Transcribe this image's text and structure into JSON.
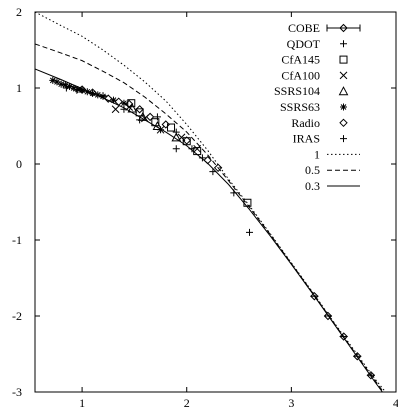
{
  "chart_data": {
    "type": "scatter",
    "title": "",
    "xlabel": "",
    "ylabel": "",
    "xlim": [
      0.55,
      4.0
    ],
    "ylim": [
      -3,
      2
    ],
    "xticks": [
      1,
      2,
      3,
      4
    ],
    "yticks": [
      -3,
      -2,
      -1,
      0,
      1,
      2
    ],
    "xtick_labels": [
      "1",
      "2",
      "3",
      "4"
    ],
    "ytick_labels": [
      "-3",
      "-2",
      "-1",
      "0",
      "1",
      "2"
    ],
    "grid": false,
    "legend_position": "top-right",
    "series": [
      {
        "name": "COBE",
        "marker": "diamond-errorbar",
        "points": [
          [
            3.22,
            -1.74
          ],
          [
            3.35,
            -2.0
          ],
          [
            3.5,
            -2.27
          ],
          [
            3.63,
            -2.53
          ],
          [
            3.76,
            -2.78
          ]
        ]
      },
      {
        "name": "QDOT",
        "marker": "plus",
        "points": [
          [
            1.72,
            0.62
          ],
          [
            1.9,
            0.42
          ],
          [
            2.05,
            0.2
          ]
        ]
      },
      {
        "name": "CfA145",
        "marker": "square",
        "points": [
          [
            1.47,
            0.8
          ],
          [
            1.55,
            0.68
          ],
          [
            1.7,
            0.55
          ],
          [
            1.85,
            0.48
          ],
          [
            2.0,
            0.3
          ],
          [
            2.1,
            0.17
          ],
          [
            2.58,
            -0.51
          ]
        ]
      },
      {
        "name": "CfA100",
        "marker": "cross",
        "points": [
          [
            1.32,
            0.72
          ],
          [
            1.45,
            0.75
          ],
          [
            1.6,
            0.6
          ],
          [
            1.75,
            0.45
          ],
          [
            1.95,
            0.35
          ],
          [
            2.1,
            0.2
          ]
        ]
      },
      {
        "name": "SSRS104",
        "marker": "triangle",
        "points": [
          [
            1.48,
            0.73
          ],
          [
            1.58,
            0.62
          ],
          [
            1.72,
            0.5
          ],
          [
            1.9,
            0.35
          ]
        ]
      },
      {
        "name": "SSRS63",
        "marker": "star",
        "points": [
          [
            0.72,
            1.1
          ],
          [
            0.76,
            1.08
          ],
          [
            0.8,
            1.05
          ],
          [
            0.84,
            1.04
          ],
          [
            0.88,
            1.02
          ],
          [
            0.92,
            1.0
          ],
          [
            0.96,
            0.98
          ],
          [
            1.0,
            0.97
          ],
          [
            1.05,
            0.95
          ],
          [
            1.1,
            0.93
          ],
          [
            1.15,
            0.91
          ],
          [
            1.2,
            0.89
          ],
          [
            1.3,
            0.84
          ],
          [
            1.4,
            0.8
          ]
        ]
      },
      {
        "name": "Radio",
        "marker": "diamond",
        "points": [
          [
            1.0,
            0.98
          ],
          [
            1.1,
            0.94
          ],
          [
            1.25,
            0.86
          ],
          [
            1.35,
            0.82
          ],
          [
            1.45,
            0.79
          ],
          [
            1.55,
            0.72
          ],
          [
            1.65,
            0.62
          ],
          [
            1.8,
            0.52
          ],
          [
            2.0,
            0.31
          ],
          [
            2.2,
            0.05
          ],
          [
            2.3,
            -0.05
          ]
        ]
      },
      {
        "name": "IRAS",
        "marker": "plus",
        "points": [
          [
            0.85,
            1.0
          ],
          [
            0.95,
            0.97
          ],
          [
            1.2,
            0.9
          ],
          [
            1.4,
            0.72
          ],
          [
            1.55,
            0.58
          ],
          [
            1.75,
            0.45
          ],
          [
            1.9,
            0.2
          ],
          [
            2.15,
            0.08
          ],
          [
            2.25,
            -0.1
          ],
          [
            2.45,
            -0.38
          ],
          [
            2.6,
            -0.9
          ]
        ]
      },
      {
        "name": "1",
        "style": "dotted",
        "points": [
          [
            0.55,
            2.0
          ],
          [
            0.8,
            1.82
          ],
          [
            1.0,
            1.68
          ],
          [
            1.2,
            1.5
          ],
          [
            1.4,
            1.3
          ],
          [
            1.6,
            1.08
          ],
          [
            1.8,
            0.83
          ],
          [
            2.0,
            0.52
          ],
          [
            2.2,
            0.18
          ],
          [
            2.4,
            -0.2
          ],
          [
            2.6,
            -0.55
          ],
          [
            2.8,
            -0.92
          ],
          [
            3.0,
            -1.3
          ],
          [
            3.2,
            -1.68
          ],
          [
            3.4,
            -2.07
          ],
          [
            3.6,
            -2.45
          ],
          [
            3.8,
            -2.83
          ],
          [
            3.9,
            -3.0
          ]
        ]
      },
      {
        "name": "0.5",
        "style": "dashed",
        "points": [
          [
            0.55,
            1.58
          ],
          [
            0.8,
            1.46
          ],
          [
            1.0,
            1.36
          ],
          [
            1.2,
            1.22
          ],
          [
            1.4,
            1.07
          ],
          [
            1.6,
            0.88
          ],
          [
            1.8,
            0.66
          ],
          [
            2.0,
            0.42
          ],
          [
            2.2,
            0.12
          ],
          [
            2.4,
            -0.22
          ],
          [
            2.6,
            -0.57
          ],
          [
            2.8,
            -0.93
          ],
          [
            3.0,
            -1.31
          ],
          [
            3.2,
            -1.69
          ],
          [
            3.4,
            -2.08
          ],
          [
            3.6,
            -2.47
          ],
          [
            3.8,
            -2.85
          ],
          [
            3.88,
            -3.0
          ]
        ]
      },
      {
        "name": "0.3",
        "style": "solid",
        "points": [
          [
            0.55,
            1.25
          ],
          [
            0.8,
            1.11
          ],
          [
            1.0,
            0.99
          ],
          [
            1.2,
            0.87
          ],
          [
            1.4,
            0.74
          ],
          [
            1.6,
            0.58
          ],
          [
            1.8,
            0.42
          ],
          [
            2.0,
            0.24
          ],
          [
            2.2,
            0.01
          ],
          [
            2.4,
            -0.27
          ],
          [
            2.6,
            -0.6
          ],
          [
            2.8,
            -0.95
          ],
          [
            3.0,
            -1.32
          ],
          [
            3.2,
            -1.7
          ],
          [
            3.4,
            -2.09
          ],
          [
            3.6,
            -2.48
          ],
          [
            3.8,
            -2.87
          ],
          [
            3.87,
            -3.0
          ]
        ]
      }
    ]
  }
}
